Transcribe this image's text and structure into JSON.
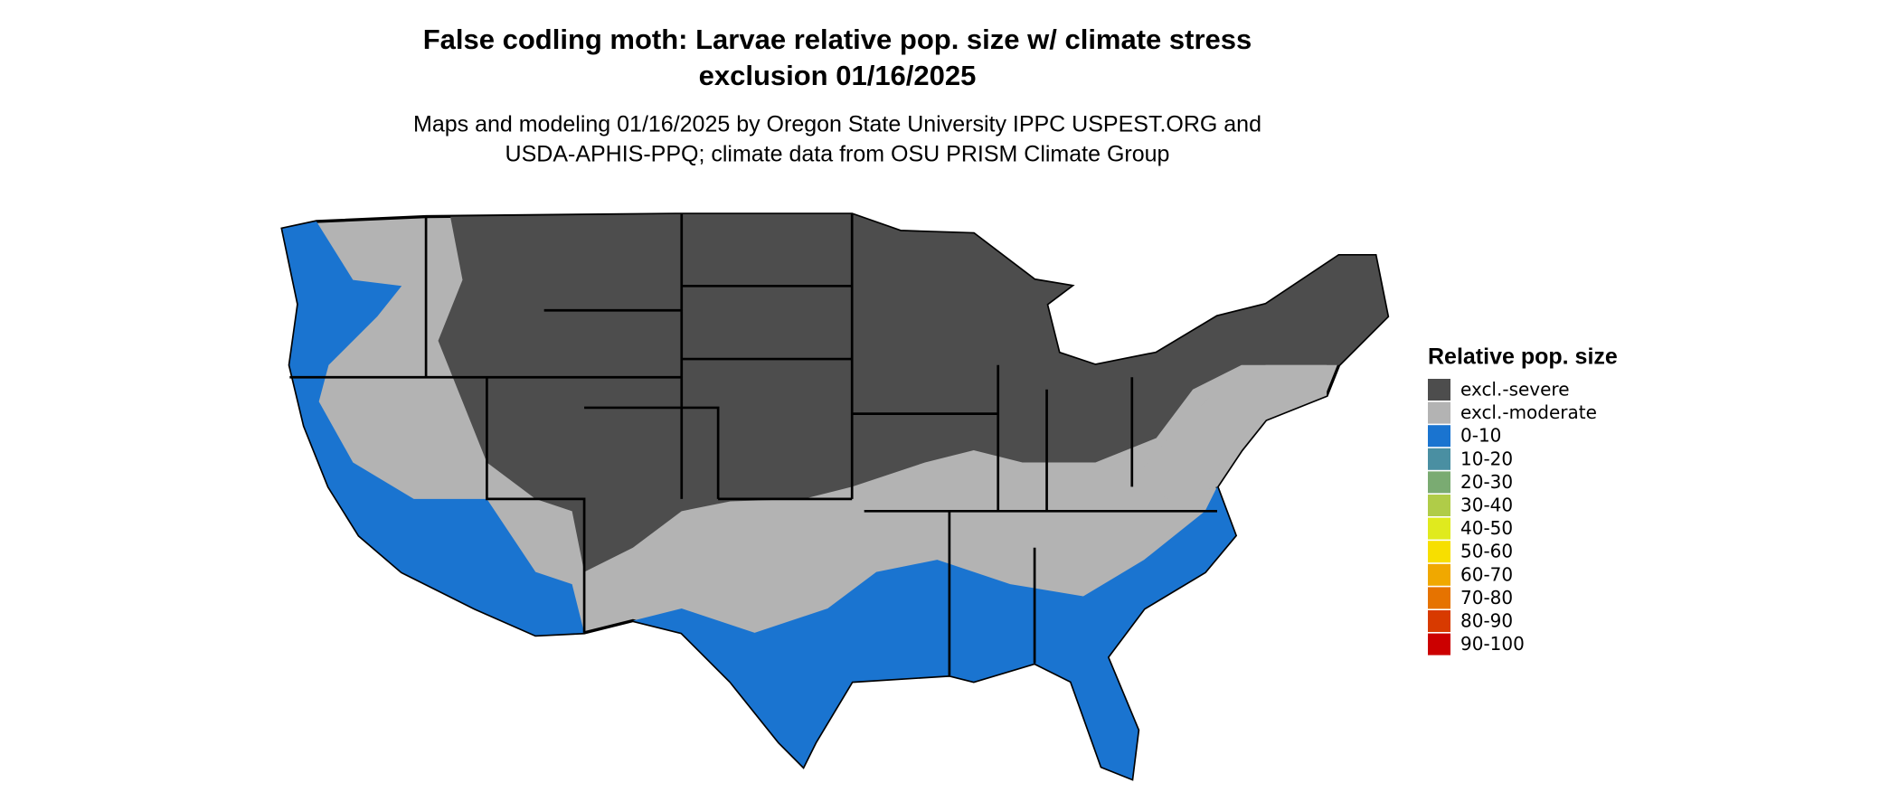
{
  "header": {
    "title_lines": [
      "False codling moth: Larvae relative pop. size w/ climate stress",
      "exclusion 01/16/2025"
    ],
    "subtitle_lines": [
      "Maps and modeling 01/16/2025 by Oregon State University IPPC USPEST.ORG and",
      "USDA-APHIS-PPQ; climate data from OSU PRISM Climate Group"
    ]
  },
  "legend": {
    "title": "Relative pop. size",
    "items": [
      {
        "label": "excl.-severe",
        "color": "#4d4d4d"
      },
      {
        "label": "excl.-moderate",
        "color": "#b3b3b3"
      },
      {
        "label": "0-10",
        "color": "#1a74d0"
      },
      {
        "label": "10-20",
        "color": "#4a8fa2"
      },
      {
        "label": "20-30",
        "color": "#7aab72"
      },
      {
        "label": "30-40",
        "color": "#b0cc48"
      },
      {
        "label": "40-50",
        "color": "#e0ea1e"
      },
      {
        "label": "50-60",
        "color": "#f7df00"
      },
      {
        "label": "60-70",
        "color": "#f0a800"
      },
      {
        "label": "70-80",
        "color": "#e67300"
      },
      {
        "label": "80-90",
        "color": "#d83a00"
      },
      {
        "label": "90-100",
        "color": "#cc0000"
      }
    ]
  }
}
